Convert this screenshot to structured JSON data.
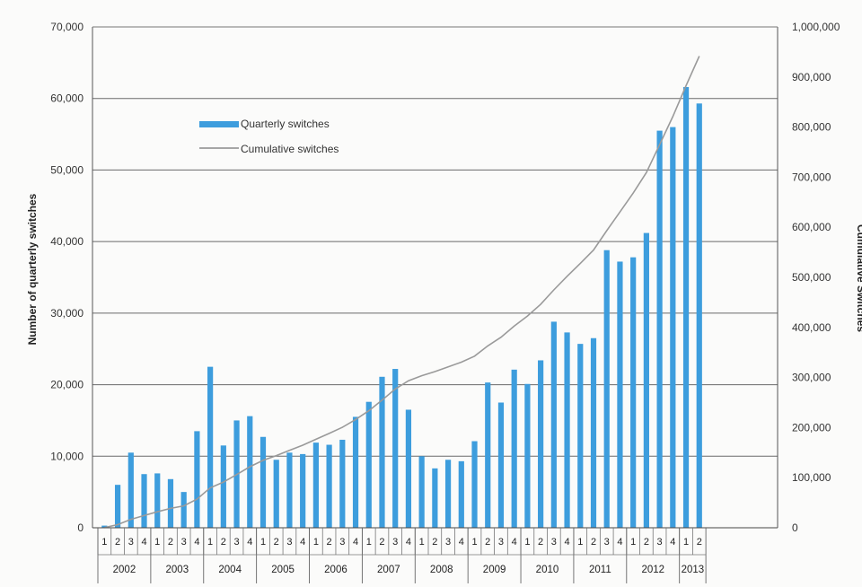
{
  "chart_data": {
    "type": "bar+line",
    "title": "",
    "years": [
      "2002",
      "2003",
      "2004",
      "2005",
      "2006",
      "2007",
      "2008",
      "2009",
      "2010",
      "2011",
      "2012",
      "2013"
    ],
    "quarters_per_year": [
      4,
      4,
      4,
      4,
      4,
      4,
      4,
      4,
      4,
      4,
      4,
      2
    ],
    "series": [
      {
        "name": "Quarterly switches",
        "kind": "bar",
        "axis": "left",
        "color": "#3d9ddd",
        "values": [
          300,
          6000,
          10500,
          7500,
          7600,
          6800,
          5000,
          13500,
          22500,
          11500,
          15000,
          15600,
          12700,
          9500,
          10500,
          10300,
          11900,
          11600,
          12300,
          15500,
          17600,
          21100,
          22200,
          16500,
          10000,
          8300,
          9500,
          9300,
          12100,
          20300,
          17500,
          22100,
          20100,
          23400,
          28800,
          27300,
          25700,
          26500,
          38800,
          37200,
          37800,
          41200,
          55500,
          56000,
          61600,
          59300
        ]
      },
      {
        "name": "Cumulative switches",
        "kind": "line",
        "axis": "right",
        "color": "#9a9a9a",
        "values": [
          300,
          6300,
          16800,
          24300,
          31900,
          38700,
          43700,
          57200,
          79700,
          91200,
          106200,
          121800,
          134500,
          144000,
          154500,
          164800,
          176700,
          188300,
          200600,
          216100,
          233700,
          254800,
          277000,
          293500,
          303500,
          311800,
          321300,
          330600,
          342700,
          363000,
          380500,
          402600,
          422700,
          446100,
          474900,
          502200,
          527900,
          554400,
          593200,
          630400,
          668200,
          709400,
          764900,
          820900,
          882500,
          941800
        ]
      }
    ],
    "left_axis": {
      "label": "Number of quarterly switches",
      "ylim": [
        0,
        70000
      ],
      "ticks": [
        "0",
        "10,000",
        "20,000",
        "30,000",
        "40,000",
        "50,000",
        "60,000",
        "70,000"
      ]
    },
    "right_axis": {
      "label": "Cumulative Switches",
      "ylim": [
        0,
        1000000
      ],
      "ticks": [
        "0",
        "100,000",
        "200,000",
        "300,000",
        "400,000",
        "500,000",
        "600,000",
        "700,000",
        "800,000",
        "900,000",
        "1,000,000"
      ]
    },
    "quarter_labels": [
      "1",
      "2",
      "3",
      "4"
    ],
    "grid": true,
    "legend_position": "top-left"
  }
}
